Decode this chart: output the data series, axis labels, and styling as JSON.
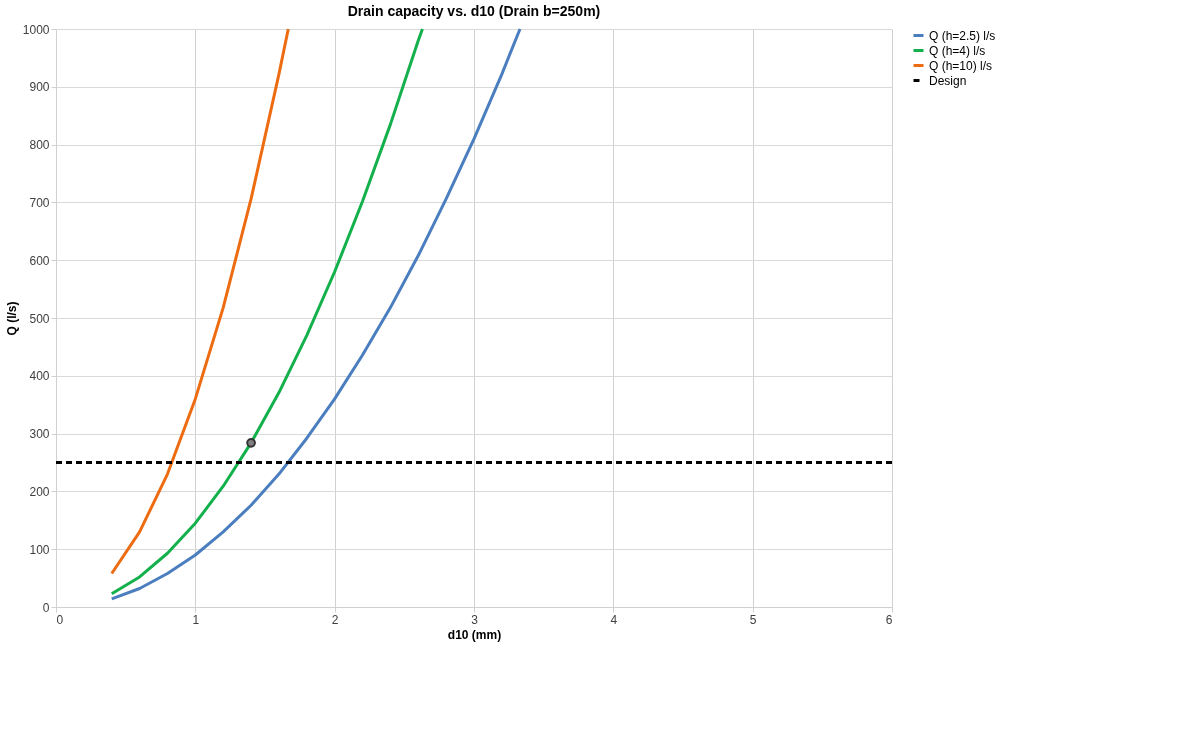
{
  "chart_data": {
    "type": "line",
    "title": "Drain capacity vs. d10 (Drain b=250m)",
    "xlabel": "d10 (mm)",
    "ylabel": "Q (l/s)",
    "xlim": [
      0,
      6
    ],
    "xticks": [
      0,
      1,
      2,
      3,
      4,
      5,
      6
    ],
    "ylim": [
      0,
      1000
    ],
    "yticks": [
      0,
      100,
      200,
      300,
      400,
      500,
      600,
      700,
      800,
      900,
      1000
    ],
    "grid": true,
    "legend": "right",
    "marker": "none",
    "series": [
      {
        "name": "Q (h=2.5) l/s",
        "color": "#4a7ebf",
        "line_style": "solid",
        "x": [
          0.4,
          0.6,
          0.8,
          1.0,
          1.2,
          1.4,
          1.6,
          1.8,
          2.0,
          2.2,
          2.4,
          2.6,
          2.8,
          3.0,
          3.2,
          3.33
        ],
        "values": [
          14,
          32,
          58,
          90,
          130,
          176,
          230,
          292,
          360,
          436,
          518,
          608,
          706,
          810,
          922,
          1000
        ]
      },
      {
        "name": "Q (h=4) l/s",
        "color": "#13b04c",
        "line_style": "solid",
        "x": [
          0.4,
          0.6,
          0.8,
          1.0,
          1.2,
          1.4,
          1.6,
          1.8,
          2.0,
          2.2,
          2.4,
          2.6,
          2.63
        ],
        "values": [
          23,
          52,
          93,
          145,
          209,
          284,
          371,
          470,
          580,
          702,
          835,
          980,
          1000
        ]
      },
      {
        "name": "Q (h=10) l/s",
        "color": "#ed6c12",
        "line_style": "solid",
        "x": [
          0.4,
          0.6,
          0.8,
          1.0,
          1.2,
          1.4,
          1.6,
          1.667
        ],
        "values": [
          58,
          130,
          230,
          360,
          518,
          706,
          922,
          1000
        ]
      },
      {
        "name": "Design",
        "color": "#000000",
        "line_style": "dashed",
        "x": [
          0,
          6
        ],
        "values": [
          250,
          250
        ]
      },
      {
        "type": "scatter",
        "marker": "circle",
        "color": "#808080",
        "x": [
          1.4
        ],
        "values": [
          284
        ]
      }
    ]
  }
}
